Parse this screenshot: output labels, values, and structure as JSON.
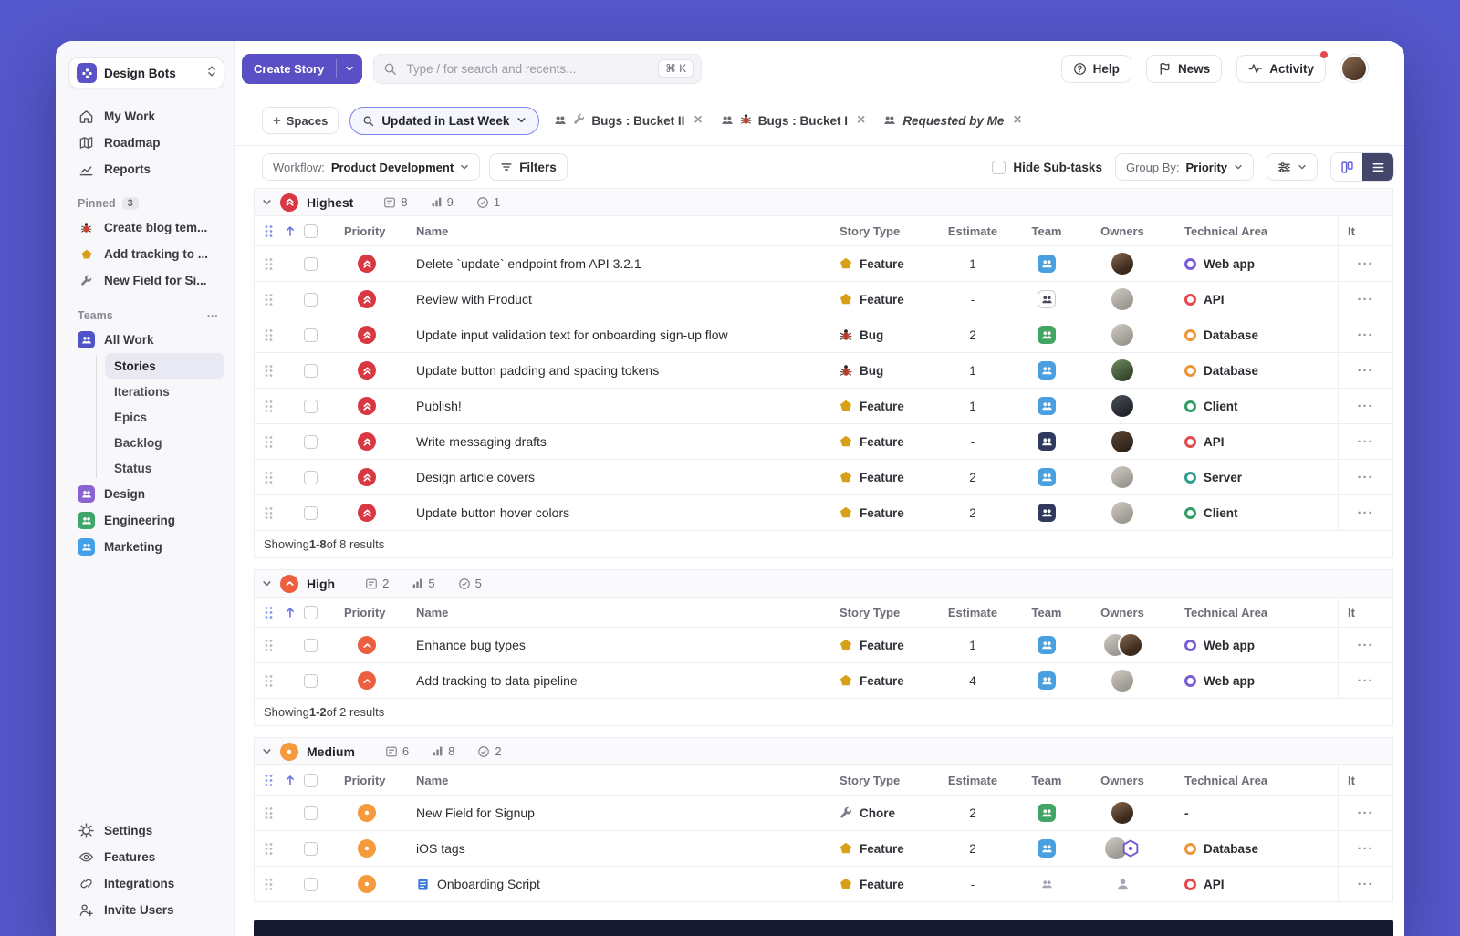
{
  "workspace": {
    "name": "Design Bots"
  },
  "topbar": {
    "create_story_label": "Create Story",
    "search_placeholder": "Type / for search and recents...",
    "search_shortcut": "⌘ K",
    "help_label": "Help",
    "news_label": "News",
    "activity_label": "Activity"
  },
  "sidebar": {
    "nav": [
      {
        "label": "My Work"
      },
      {
        "label": "Roadmap"
      },
      {
        "label": "Reports"
      }
    ],
    "pinned_label": "Pinned",
    "pinned_count": "3",
    "pinned": [
      {
        "label": "Create blog tem..."
      },
      {
        "label": "Add tracking to ..."
      },
      {
        "label": "New Field for Si..."
      }
    ],
    "teams_label": "Teams",
    "teams": [
      {
        "label": "All Work"
      },
      {
        "label": "Design"
      },
      {
        "label": "Engineering"
      },
      {
        "label": "Marketing"
      }
    ],
    "all_work_views": [
      {
        "label": "Stories"
      },
      {
        "label": "Iterations"
      },
      {
        "label": "Epics"
      },
      {
        "label": "Backlog"
      },
      {
        "label": "Status"
      }
    ],
    "footer": [
      {
        "label": "Settings"
      },
      {
        "label": "Features"
      },
      {
        "label": "Integrations"
      },
      {
        "label": "Invite Users"
      }
    ]
  },
  "filter_bar": {
    "spaces_label": "Spaces",
    "active_filter": "Updated in Last Week",
    "chips": [
      {
        "label": "Bugs : Bucket II"
      },
      {
        "label": "Bugs : Bucket I"
      },
      {
        "label": "Requested by Me"
      }
    ]
  },
  "toolbar": {
    "workflow_label": "Workflow:",
    "workflow_value": "Product Development",
    "filters_label": "Filters",
    "hide_subtasks_label": "Hide Sub-tasks",
    "group_by_label": "Group By:",
    "group_by_value": "Priority"
  },
  "table": {
    "columns": {
      "priority": "Priority",
      "name": "Name",
      "story_type": "Story Type",
      "estimate": "Estimate",
      "team": "Team",
      "owners": "Owners",
      "technical_area": "Technical Area",
      "iteration_truncated": "It"
    },
    "groups": [
      {
        "name": "Highest",
        "level": "highest",
        "stats": {
          "stories": "8",
          "points": "9",
          "done": "1"
        },
        "rows": [
          {
            "name": "Delete `update` endpoint from API 3.2.1",
            "type": "Feature",
            "estimate": "1",
            "team": "blue",
            "owners": [
              "p1"
            ],
            "tech": {
              "label": "Web app",
              "color": "purple"
            }
          },
          {
            "name": "Review with Product",
            "type": "Feature",
            "estimate": "-",
            "team": "outline",
            "owners": [
              "p2"
            ],
            "tech": {
              "label": "API",
              "color": "red"
            }
          },
          {
            "name": "Update input validation text for onboarding sign-up flow",
            "type": "Bug",
            "estimate": "2",
            "team": "green",
            "owners": [
              "p2"
            ],
            "tech": {
              "label": "Database",
              "color": "orange"
            }
          },
          {
            "name": "Update button padding and spacing tokens",
            "type": "Bug",
            "estimate": "1",
            "team": "blue",
            "owners": [
              "p3"
            ],
            "tech": {
              "label": "Database",
              "color": "orange"
            }
          },
          {
            "name": "Publish!",
            "type": "Feature",
            "estimate": "1",
            "team": "blue",
            "owners": [
              "p4"
            ],
            "tech": {
              "label": "Client",
              "color": "green"
            }
          },
          {
            "name": "Write messaging drafts",
            "type": "Feature",
            "estimate": "-",
            "team": "navy",
            "owners": [
              "p5"
            ],
            "tech": {
              "label": "API",
              "color": "red"
            }
          },
          {
            "name": "Design article covers",
            "type": "Feature",
            "estimate": "2",
            "team": "blue",
            "owners": [
              "p2"
            ],
            "tech": {
              "label": "Server",
              "color": "teal"
            }
          },
          {
            "name": "Update button hover colors",
            "type": "Feature",
            "estimate": "2",
            "team": "navy",
            "owners": [
              "p2"
            ],
            "tech": {
              "label": "Client",
              "color": "green"
            }
          }
        ],
        "footer": {
          "prefix": "Showing ",
          "range": "1-8",
          "suffix": " of 8 results"
        }
      },
      {
        "name": "High",
        "level": "high",
        "stats": {
          "stories": "2",
          "points": "5",
          "done": "5"
        },
        "rows": [
          {
            "name": "Enhance bug types",
            "type": "Feature",
            "estimate": "1",
            "team": "blue",
            "owners": [
              "p2",
              "p1"
            ],
            "tech": {
              "label": "Web app",
              "color": "purple"
            }
          },
          {
            "name": "Add tracking to data pipeline",
            "type": "Feature",
            "estimate": "4",
            "team": "blue",
            "owners": [
              "p2"
            ],
            "tech": {
              "label": "Web app",
              "color": "purple"
            }
          }
        ],
        "footer": {
          "prefix": "Showing ",
          "range": "1-2",
          "suffix": " of 2 results"
        }
      },
      {
        "name": "Medium",
        "level": "medium",
        "stats": {
          "stories": "6",
          "points": "8",
          "done": "2"
        },
        "rows": [
          {
            "name": "New Field for Signup",
            "type": "Chore",
            "estimate": "2",
            "team": "green",
            "owners": [
              "p1"
            ],
            "tech": {
              "label": "-",
              "color": "none"
            }
          },
          {
            "name": "iOS tags",
            "type": "Feature",
            "estimate": "2",
            "team": "blue",
            "owners": [
              "p2",
              "hex"
            ],
            "tech": {
              "label": "Database",
              "color": "orange"
            }
          },
          {
            "name": "Onboarding Script",
            "name_icon": "doc",
            "type": "Feature",
            "estimate": "-",
            "team": "plain",
            "owners": [
              "placeholder"
            ],
            "tech": {
              "label": "API",
              "color": "red"
            }
          }
        ],
        "footer": null
      }
    ]
  }
}
